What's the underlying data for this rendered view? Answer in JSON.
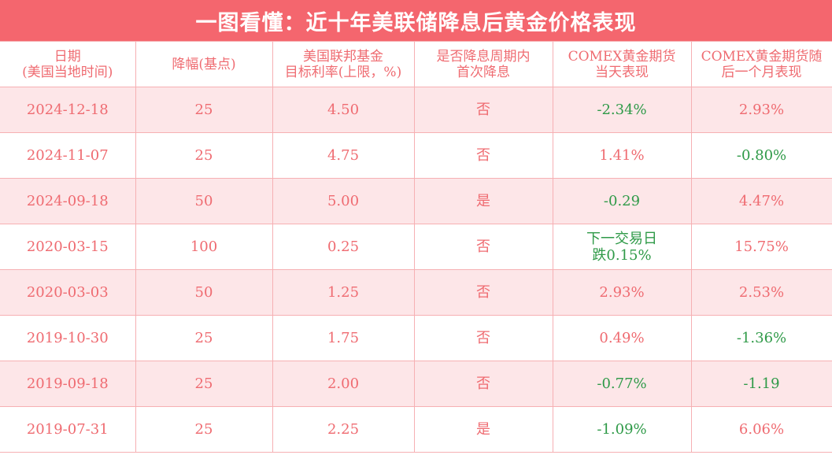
{
  "title": "一图看懂：近十年美联储降息后黄金价格表现",
  "headers": [
    [
      "日期",
      "(美国当地时间)"
    ],
    [
      "降幅(基点)",
      ""
    ],
    [
      "美国联邦基金",
      "目标利率(上限，%)"
    ],
    [
      "是否降息周期内",
      "首次降息"
    ],
    [
      "COMEX黄金期货",
      "当天表现"
    ],
    [
      "COMEX黄金期货随",
      "后一个月表现"
    ]
  ],
  "colors": {
    "title_bg": "#f4666e",
    "up_text": "#ef6b71",
    "down_text": "#2f9a48",
    "stripe": "#fde6e8"
  },
  "rows": [
    {
      "date": "2024-12-18",
      "cut": "25",
      "rate": "4.50",
      "first": "否",
      "day": [
        "-2.34%",
        ""
      ],
      "day_down": true,
      "month": "2.93%",
      "month_down": false
    },
    {
      "date": "2024-11-07",
      "cut": "25",
      "rate": "4.75",
      "first": "否",
      "day": [
        "1.41%",
        ""
      ],
      "day_down": false,
      "month": "-0.80%",
      "month_down": true
    },
    {
      "date": "2024-09-18",
      "cut": "50",
      "rate": "5.00",
      "first": "是",
      "day": [
        "-0.29",
        ""
      ],
      "day_down": true,
      "month": "4.47%",
      "month_down": false
    },
    {
      "date": "2020-03-15",
      "cut": "100",
      "rate": "0.25",
      "first": "否",
      "day": [
        "下一交易日",
        "跌0.15%"
      ],
      "day_down": true,
      "month": "15.75%",
      "month_down": false
    },
    {
      "date": "2020-03-03",
      "cut": "50",
      "rate": "1.25",
      "first": "否",
      "day": [
        "2.93%",
        ""
      ],
      "day_down": false,
      "month": "2.53%",
      "month_down": false
    },
    {
      "date": "2019-10-30",
      "cut": "25",
      "rate": "1.75",
      "first": "否",
      "day": [
        "0.49%",
        ""
      ],
      "day_down": false,
      "month": "-1.36%",
      "month_down": true
    },
    {
      "date": "2019-09-18",
      "cut": "25",
      "rate": "2.00",
      "first": "否",
      "day": [
        "-0.77%",
        ""
      ],
      "day_down": true,
      "month": "-1.19",
      "month_down": true
    },
    {
      "date": "2019-07-31",
      "cut": "25",
      "rate": "2.25",
      "first": "是",
      "day": [
        "-1.09%",
        ""
      ],
      "day_down": true,
      "month": "6.06%",
      "month_down": false
    }
  ]
}
